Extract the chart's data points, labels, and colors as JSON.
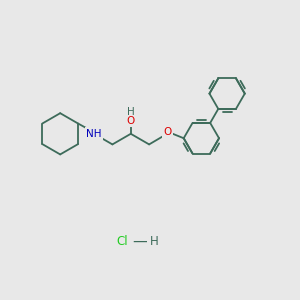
{
  "background_color": "#e8e8e8",
  "bond_color": "#3d6b5a",
  "bond_width": 1.3,
  "atom_colors": {
    "O": "#dd0000",
    "N": "#0000bb",
    "H": "#3d6b5a",
    "Cl": "#22cc22",
    "C": "#3d6b5a"
  },
  "font_size_atom": 7.5,
  "font_size_hcl": 8.5,
  "figsize": [
    3.0,
    3.0
  ],
  "dpi": 100,
  "xlim": [
    0,
    10
  ],
  "ylim": [
    0,
    10
  ]
}
